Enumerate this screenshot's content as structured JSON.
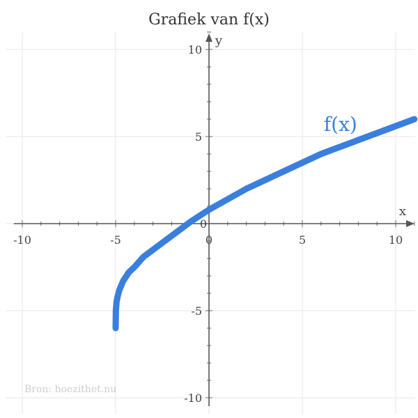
{
  "chart_data": {
    "type": "line",
    "title": "Grafiek van f(x)",
    "xlabel": "x",
    "ylabel": "y",
    "xlim": [
      -10.5,
      11.0
    ],
    "ylim": [
      -10.5,
      11.0
    ],
    "x_ticks": [
      {
        "value": -10,
        "label": "-10"
      },
      {
        "value": -5,
        "label": "-5"
      },
      {
        "value": 0,
        "label": "0"
      },
      {
        "value": 5,
        "label": "5"
      },
      {
        "value": 10,
        "label": "10"
      }
    ],
    "y_ticks": [
      {
        "value": -10,
        "label": "-10"
      },
      {
        "value": -5,
        "label": "-5"
      },
      {
        "value": 0,
        "label": "0"
      },
      {
        "value": 5,
        "label": "5"
      },
      {
        "value": 10,
        "label": "10"
      }
    ],
    "grid": true,
    "series": [
      {
        "name": "f(x)",
        "color": "#3a7fde",
        "x": [
          -5.0,
          -4.99,
          -4.95,
          -4.9,
          -4.8,
          -4.6,
          -4.3,
          -4.0,
          -3.5,
          -3.0,
          -2.0,
          -1.0,
          0.0,
          1.0,
          2.0,
          3.0,
          4.0,
          5.0,
          6.0,
          7.0,
          8.0,
          9.0,
          10.0,
          11.0
        ],
        "y": [
          -6.0,
          -5.0,
          -4.5,
          -4.2,
          -3.8,
          -3.3,
          -2.8,
          -2.5,
          -1.9,
          -1.5,
          -0.7,
          0.1,
          0.8,
          1.4,
          2.0,
          2.5,
          3.0,
          3.5,
          4.0,
          4.4,
          4.8,
          5.2,
          5.6,
          6.0
        ]
      }
    ],
    "series_label": {
      "text": "f(x)",
      "x": 6.0,
      "y": 5.4
    },
    "source_note": "Bron: hoezithet.nu"
  }
}
